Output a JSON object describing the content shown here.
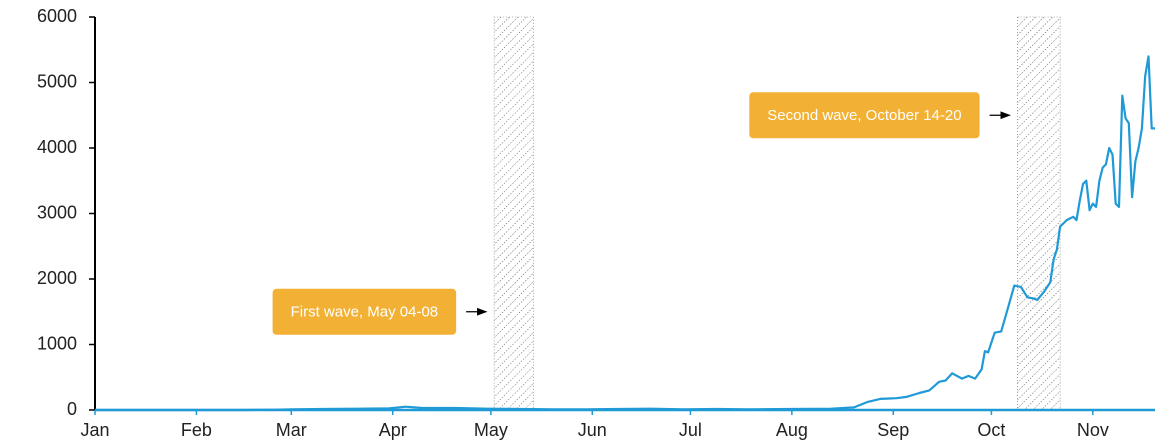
{
  "chart_data": {
    "type": "line",
    "color": "#1f9ad6",
    "x": [
      0,
      14,
      31,
      45,
      55,
      60,
      70,
      80,
      90,
      95,
      100,
      110,
      120,
      130,
      140,
      150,
      160,
      170,
      180,
      190,
      200,
      213,
      225,
      232,
      236,
      240,
      245,
      248,
      252,
      255,
      258,
      260,
      262,
      265,
      267,
      269,
      271,
      272,
      273,
      275,
      277,
      279,
      281,
      283,
      285,
      287,
      288,
      290,
      292,
      293,
      294,
      295,
      297,
      299,
      300,
      301,
      302,
      303,
      304,
      305,
      306,
      307,
      308,
      309,
      310,
      311,
      312,
      313,
      314,
      315,
      316,
      317,
      318,
      319,
      320,
      321,
      322,
      323,
      324
    ],
    "values": [
      0,
      0,
      0,
      0,
      5,
      10,
      15,
      20,
      25,
      50,
      30,
      30,
      20,
      15,
      10,
      10,
      15,
      20,
      10,
      15,
      10,
      15,
      20,
      40,
      120,
      170,
      180,
      200,
      260,
      300,
      430,
      450,
      560,
      480,
      520,
      480,
      620,
      900,
      880,
      1180,
      1200,
      1550,
      1900,
      1880,
      1720,
      1700,
      1680,
      1800,
      1950,
      2300,
      2450,
      2800,
      2900,
      2950,
      2900,
      3200,
      3450,
      3500,
      3050,
      3150,
      3100,
      3500,
      3700,
      3750,
      4000,
      3900,
      3150,
      3100,
      4800,
      4450,
      4380,
      3250,
      3800,
      4000,
      4300,
      5100,
      5400,
      4300,
      4300
    ],
    "xlim": [
      0,
      324
    ],
    "xticks": [
      {
        "value": 0,
        "label": "Jan"
      },
      {
        "value": 31,
        "label": "Feb"
      },
      {
        "value": 60,
        "label": "Mar"
      },
      {
        "value": 91,
        "label": "Apr"
      },
      {
        "value": 121,
        "label": "May"
      },
      {
        "value": 152,
        "label": "Jun"
      },
      {
        "value": 182,
        "label": "Jul"
      },
      {
        "value": 213,
        "label": "Aug"
      },
      {
        "value": 244,
        "label": "Sep"
      },
      {
        "value": 274,
        "label": "Oct"
      },
      {
        "value": 305,
        "label": "Nov"
      }
    ],
    "ylim": [
      0,
      6000
    ],
    "yticks": [
      0,
      1000,
      2000,
      3000,
      4000,
      5000,
      6000
    ],
    "annotations": [
      {
        "text": "First wave, May 04-08",
        "range": [
          122,
          134
        ],
        "y": 1500
      },
      {
        "text": "Second wave, October  14-20",
        "range": [
          282,
          295
        ],
        "y": 4500
      }
    ],
    "annotation_color": "#f2b134"
  }
}
